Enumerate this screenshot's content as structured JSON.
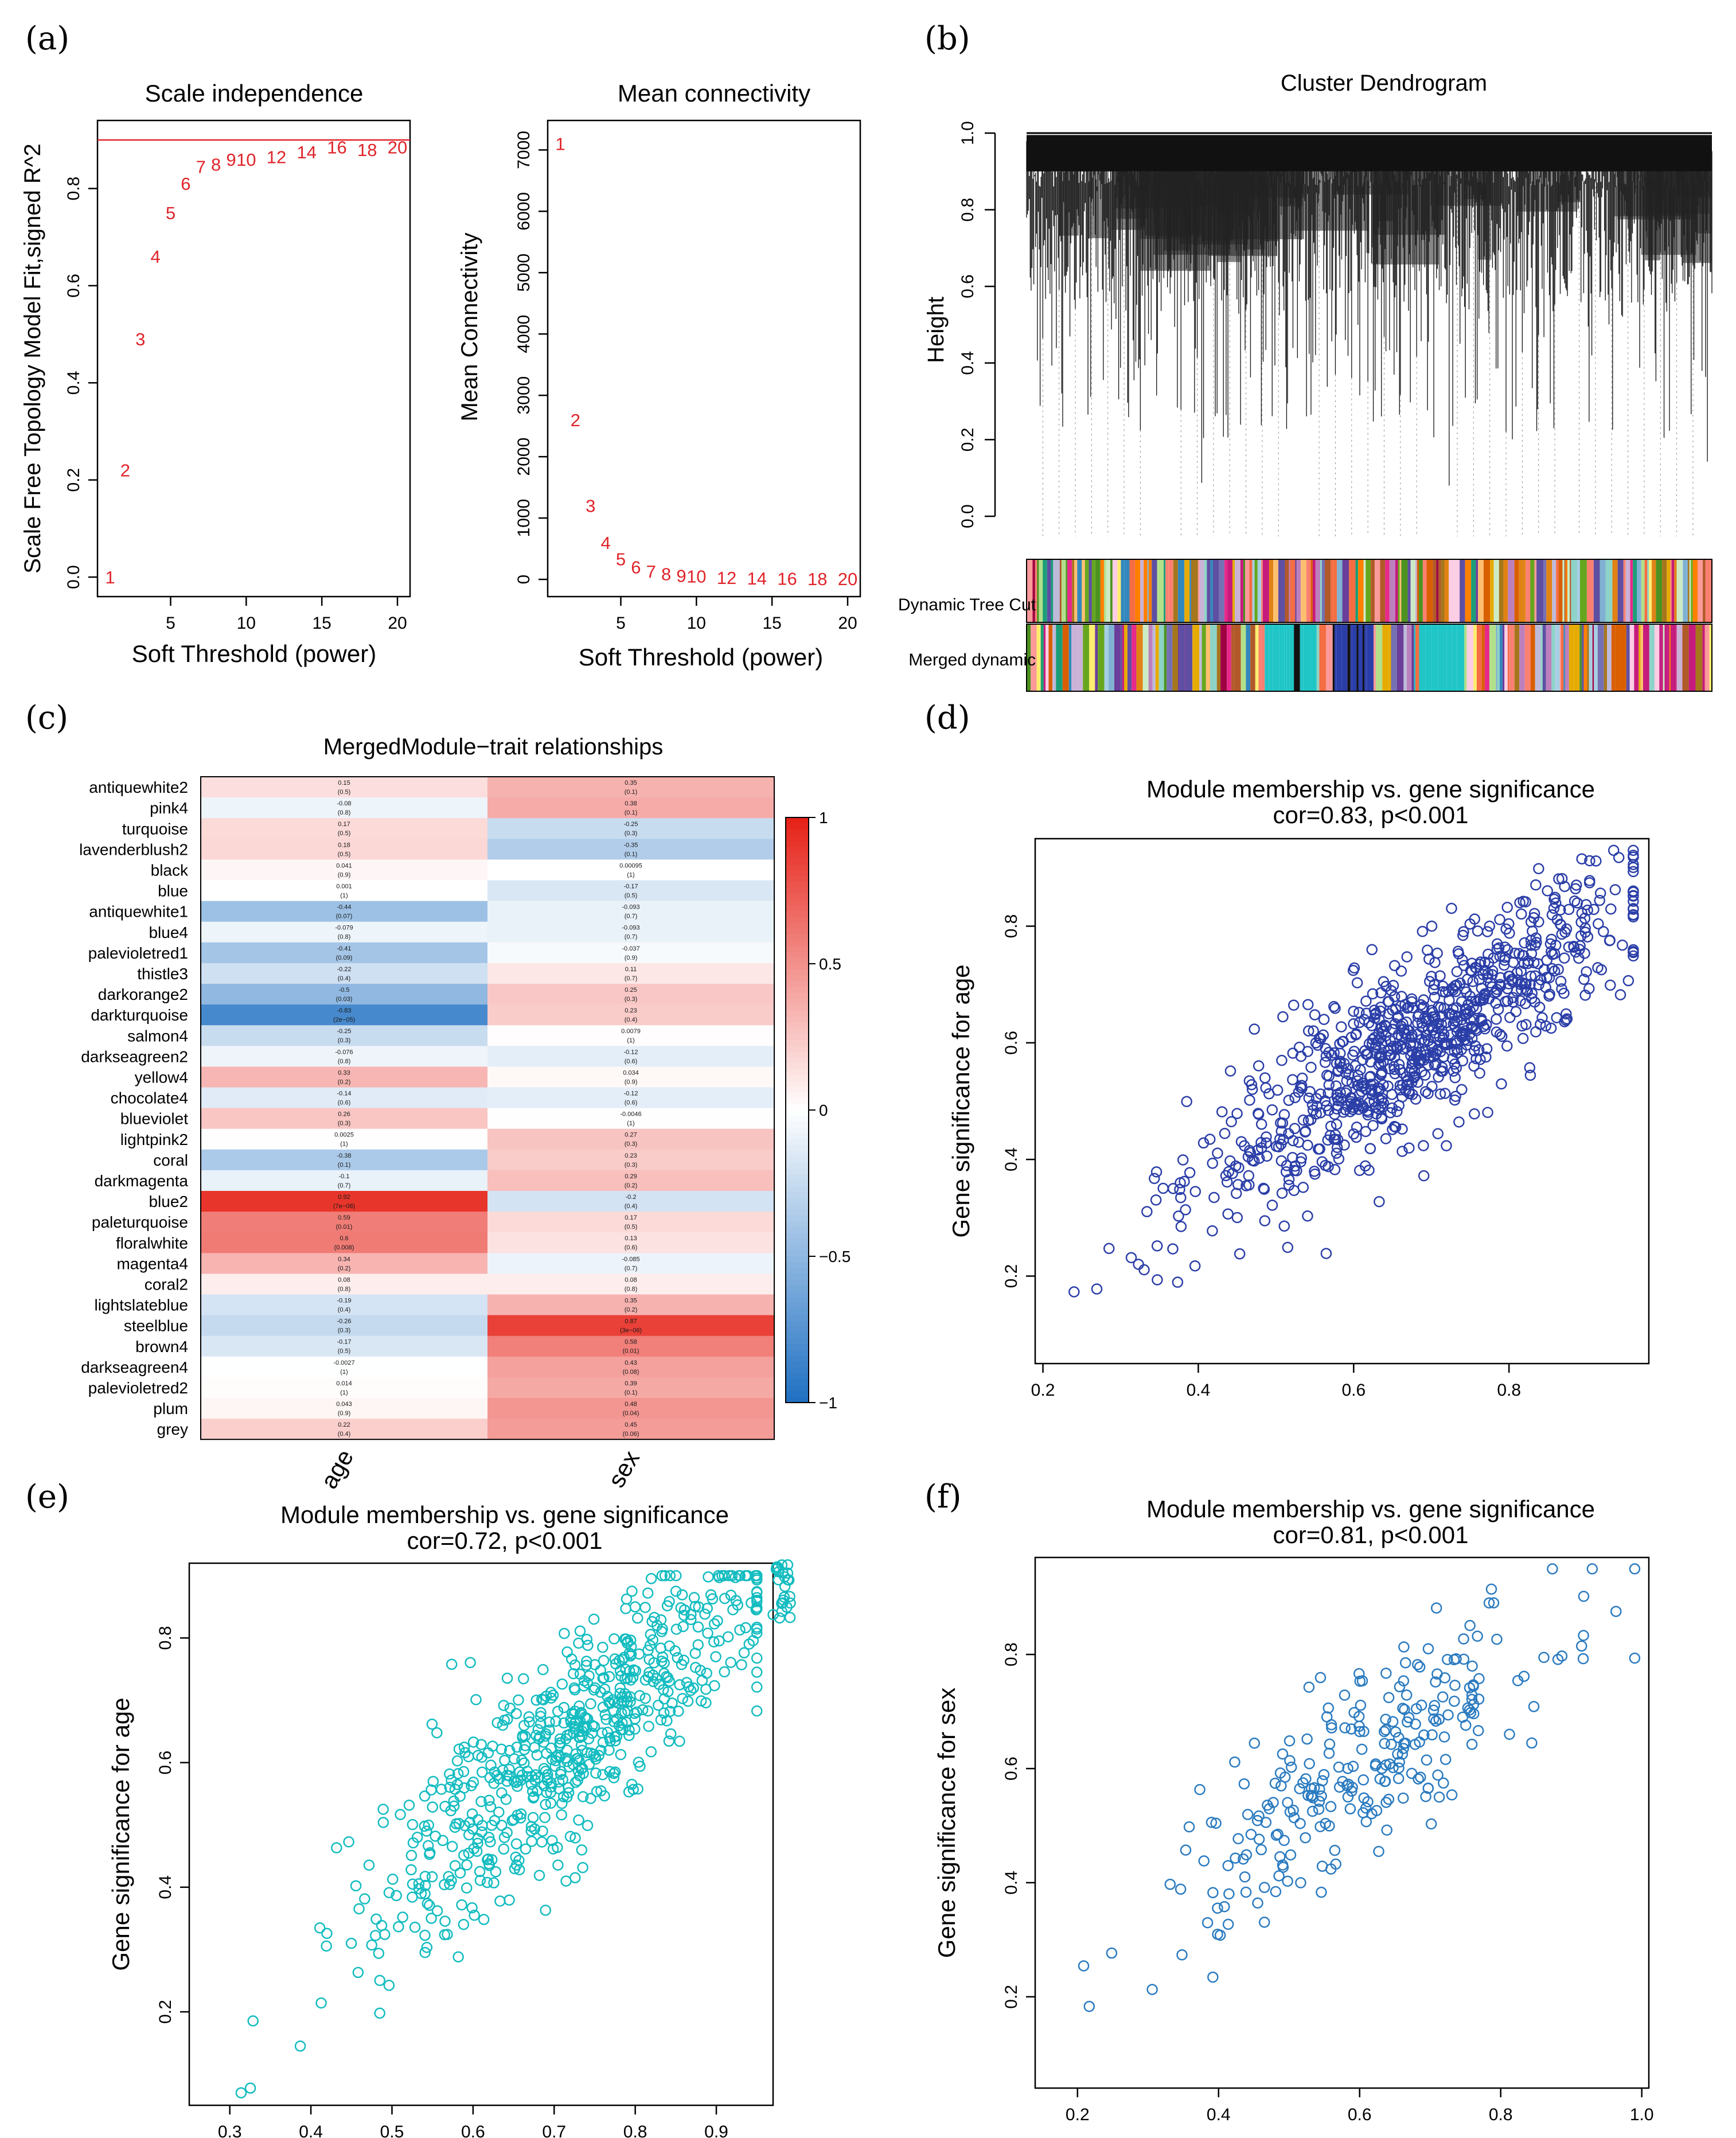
{
  "panels": {
    "a": "(a)",
    "b": "(b)",
    "c": "(c)",
    "d": "(d)",
    "e": "(e)",
    "f": "(f)"
  },
  "chart_data": [
    {
      "id": "scale_independence",
      "type": "scatter",
      "title": "Scale independence",
      "xlabel": "Soft Threshold (power)",
      "ylabel": "Scale Free Topology Model Fit,signed R^2",
      "xlim": [
        1,
        20
      ],
      "ylim": [
        0,
        0.9
      ],
      "xticks": [
        "5",
        "10",
        "15",
        "20"
      ],
      "yticks": [
        "0.0",
        "0.2",
        "0.4",
        "0.6",
        "0.8"
      ],
      "threshold": 0.9,
      "points": [
        {
          "x": 1,
          "y": 0.0,
          "label": "1"
        },
        {
          "x": 2,
          "y": 0.22,
          "label": "2"
        },
        {
          "x": 3,
          "y": 0.49,
          "label": "3"
        },
        {
          "x": 4,
          "y": 0.66,
          "label": "4"
        },
        {
          "x": 5,
          "y": 0.75,
          "label": "5"
        },
        {
          "x": 6,
          "y": 0.81,
          "label": "6"
        },
        {
          "x": 7,
          "y": 0.845,
          "label": "7"
        },
        {
          "x": 8,
          "y": 0.85,
          "label": "8"
        },
        {
          "x": 9,
          "y": 0.86,
          "label": "9"
        },
        {
          "x": 10,
          "y": 0.86,
          "label": "10"
        },
        {
          "x": 12,
          "y": 0.865,
          "label": "12"
        },
        {
          "x": 14,
          "y": 0.875,
          "label": "14"
        },
        {
          "x": 16,
          "y": 0.885,
          "label": "16"
        },
        {
          "x": 18,
          "y": 0.88,
          "label": "18"
        },
        {
          "x": 20,
          "y": 0.885,
          "label": "20"
        }
      ]
    },
    {
      "id": "mean_connectivity",
      "type": "scatter",
      "title": "Mean connectivity",
      "xlabel": "Soft Threshold (power)",
      "ylabel": "Mean Connectivity",
      "xlim": [
        1,
        20
      ],
      "ylim": [
        0,
        7200
      ],
      "xticks": [
        "5",
        "10",
        "15",
        "20"
      ],
      "yticks": [
        "0",
        "1000",
        "2000",
        "3000",
        "4000",
        "5000",
        "6000",
        "7000"
      ],
      "points": [
        {
          "x": 1,
          "y": 7100,
          "label": "1"
        },
        {
          "x": 2,
          "y": 2600,
          "label": "2"
        },
        {
          "x": 3,
          "y": 1200,
          "label": "3"
        },
        {
          "x": 4,
          "y": 600,
          "label": "4"
        },
        {
          "x": 5,
          "y": 330,
          "label": "5"
        },
        {
          "x": 6,
          "y": 200,
          "label": "6"
        },
        {
          "x": 7,
          "y": 130,
          "label": "7"
        },
        {
          "x": 8,
          "y": 90,
          "label": "8"
        },
        {
          "x": 9,
          "y": 60,
          "label": "9"
        },
        {
          "x": 10,
          "y": 50,
          "label": "10"
        },
        {
          "x": 12,
          "y": 30,
          "label": "12"
        },
        {
          "x": 14,
          "y": 20,
          "label": "14"
        },
        {
          "x": 16,
          "y": 15,
          "label": "16"
        },
        {
          "x": 18,
          "y": 10,
          "label": "18"
        },
        {
          "x": 20,
          "y": 8,
          "label": "20"
        }
      ]
    },
    {
      "id": "cluster_dendrogram",
      "type": "dendrogram",
      "title": "Cluster Dendrogram",
      "ylabel": "Height",
      "ylim": [
        0,
        1
      ],
      "yticks": [
        "0.0",
        "0.2",
        "0.4",
        "0.6",
        "0.8",
        "1.0"
      ],
      "color_bars": [
        "Dynamic Tree Cut",
        "Merged dynamic"
      ]
    },
    {
      "id": "module_trait",
      "type": "heatmap",
      "title": "MergedModule−trait relationships",
      "columns": [
        "age",
        "sex"
      ],
      "colorbar_ticks": [
        "1",
        "0.5",
        "0",
        "−0.5",
        "−1"
      ],
      "rows": [
        {
          "name": "antiquewhite2",
          "age": 0.15,
          "age_p": "(0.5)",
          "sex": 0.35,
          "sex_p": "(0.1)"
        },
        {
          "name": "pink4",
          "age": -0.08,
          "age_p": "(0.8)",
          "sex": 0.38,
          "sex_p": "(0.1)"
        },
        {
          "name": "turquoise",
          "age": 0.17,
          "age_p": "(0.5)",
          "sex": -0.25,
          "sex_p": "(0.3)"
        },
        {
          "name": "lavenderblush2",
          "age": 0.18,
          "age_p": "(0.5)",
          "sex": -0.35,
          "sex_p": "(0.1)"
        },
        {
          "name": "black",
          "age": 0.041,
          "age_p": "(0.9)",
          "sex": 0.00095,
          "sex_p": "(1)"
        },
        {
          "name": "blue",
          "age": 0.001,
          "age_p": "(1)",
          "sex": -0.17,
          "sex_p": "(0.5)"
        },
        {
          "name": "antiquewhite1",
          "age": -0.44,
          "age_p": "(0.07)",
          "sex": -0.093,
          "sex_p": "(0.7)"
        },
        {
          "name": "blue4",
          "age": -0.079,
          "age_p": "(0.8)",
          "sex": -0.093,
          "sex_p": "(0.7)"
        },
        {
          "name": "palevioletred1",
          "age": -0.41,
          "age_p": "(0.09)",
          "sex": -0.037,
          "sex_p": "(0.9)"
        },
        {
          "name": "thistle3",
          "age": -0.22,
          "age_p": "(0.4)",
          "sex": 0.11,
          "sex_p": "(0.7)"
        },
        {
          "name": "darkorange2",
          "age": -0.5,
          "age_p": "(0.03)",
          "sex": 0.25,
          "sex_p": "(0.3)"
        },
        {
          "name": "darkturquoise",
          "age": -0.83,
          "age_p": "(2e−05)",
          "sex": 0.23,
          "sex_p": "(0.4)"
        },
        {
          "name": "salmon4",
          "age": -0.25,
          "age_p": "(0.3)",
          "sex": 0.0079,
          "sex_p": "(1)"
        },
        {
          "name": "darkseagreen2",
          "age": -0.076,
          "age_p": "(0.8)",
          "sex": -0.12,
          "sex_p": "(0.6)"
        },
        {
          "name": "yellow4",
          "age": 0.33,
          "age_p": "(0.2)",
          "sex": 0.034,
          "sex_p": "(0.9)"
        },
        {
          "name": "chocolate4",
          "age": -0.14,
          "age_p": "(0.6)",
          "sex": -0.12,
          "sex_p": "(0.6)"
        },
        {
          "name": "blueviolet",
          "age": 0.26,
          "age_p": "(0.3)",
          "sex": -0.0046,
          "sex_p": "(1)"
        },
        {
          "name": "lightpink2",
          "age": 0.0025,
          "age_p": "(1)",
          "sex": 0.27,
          "sex_p": "(0.3)"
        },
        {
          "name": "coral",
          "age": -0.38,
          "age_p": "(0.1)",
          "sex": 0.23,
          "sex_p": "(0.3)"
        },
        {
          "name": "darkmagenta",
          "age": -0.1,
          "age_p": "(0.7)",
          "sex": 0.29,
          "sex_p": "(0.2)"
        },
        {
          "name": "blue2",
          "age": 0.92,
          "age_p": "(7e−08)",
          "sex": -0.2,
          "sex_p": "(0.4)"
        },
        {
          "name": "paleturquoise",
          "age": 0.59,
          "age_p": "(0.01)",
          "sex": 0.17,
          "sex_p": "(0.5)"
        },
        {
          "name": "floralwhite",
          "age": 0.6,
          "age_p": "(0.008)",
          "sex": 0.13,
          "sex_p": "(0.6)"
        },
        {
          "name": "magenta4",
          "age": 0.34,
          "age_p": "(0.2)",
          "sex": -0.085,
          "sex_p": "(0.7)"
        },
        {
          "name": "coral2",
          "age": 0.08,
          "age_p": "(0.8)",
          "sex": 0.08,
          "sex_p": "(0.8)"
        },
        {
          "name": "lightslateblue",
          "age": -0.19,
          "age_p": "(0.4)",
          "sex": 0.35,
          "sex_p": "(0.2)"
        },
        {
          "name": "steelblue",
          "age": -0.26,
          "age_p": "(0.3)",
          "sex": 0.87,
          "sex_p": "(3e−06)"
        },
        {
          "name": "brown4",
          "age": -0.17,
          "age_p": "(0.5)",
          "sex": 0.58,
          "sex_p": "(0.01)"
        },
        {
          "name": "darkseagreen4",
          "age": -0.0027,
          "age_p": "(1)",
          "sex": 0.43,
          "sex_p": "(0.08)"
        },
        {
          "name": "palevioletred2",
          "age": 0.014,
          "age_p": "(1)",
          "sex": 0.39,
          "sex_p": "(0.1)"
        },
        {
          "name": "plum",
          "age": 0.043,
          "age_p": "(0.9)",
          "sex": 0.48,
          "sex_p": "(0.04)"
        },
        {
          "name": "grey",
          "age": 0.22,
          "age_p": "(0.4)",
          "sex": 0.45,
          "sex_p": "(0.06)"
        }
      ]
    },
    {
      "id": "mm_gs_d",
      "type": "scatter",
      "title": "Module membership vs. gene significance",
      "subtitle": "cor=0.83, p<0.001",
      "ylabel": "Gene significance for age",
      "xlim": [
        0.19,
        0.98
      ],
      "ylim": [
        0.05,
        0.95
      ],
      "xticks": [
        "0.2",
        "0.4",
        "0.6",
        "0.8"
      ],
      "yticks": [
        "0.2",
        "0.4",
        "0.6",
        "0.8"
      ],
      "color": "#2b3ea8",
      "cor": 0.83,
      "n_points": 900,
      "x_center": 0.68,
      "x_sd": 0.14,
      "y_resid_sd": 0.07
    },
    {
      "id": "mm_gs_e",
      "type": "scatter",
      "title": "Module membership vs. gene significance",
      "subtitle": "cor=0.72, p<0.001",
      "ylabel": "Gene significance for age",
      "xlim": [
        0.25,
        0.97
      ],
      "ylim": [
        0.05,
        0.92
      ],
      "xticks": [
        "0.3",
        "0.4",
        "0.5",
        "0.6",
        "0.7",
        "0.8",
        "0.9"
      ],
      "yticks": [
        "0.2",
        "0.4",
        "0.6",
        "0.8"
      ],
      "color": "#13bcc0",
      "cor": 0.72,
      "n_points": 650,
      "x_center": 0.72,
      "x_sd": 0.13,
      "y_resid_sd": 0.08
    },
    {
      "id": "mm_gs_f",
      "type": "scatter",
      "title": "Module membership vs. gene significance",
      "subtitle": "cor=0.81, p<0.001",
      "ylabel": "Gene significance for sex",
      "xlim": [
        0.14,
        1.01
      ],
      "ylim": [
        0.04,
        0.97
      ],
      "xticks": [
        "0.2",
        "0.4",
        "0.6",
        "0.8",
        "1.0"
      ],
      "yticks": [
        "0.2",
        "0.4",
        "0.6",
        "0.8"
      ],
      "color": "#2b7bc0",
      "cor": 0.81,
      "n_points": 260,
      "x_center": 0.6,
      "x_sd": 0.14,
      "y_resid_sd": 0.08
    }
  ]
}
